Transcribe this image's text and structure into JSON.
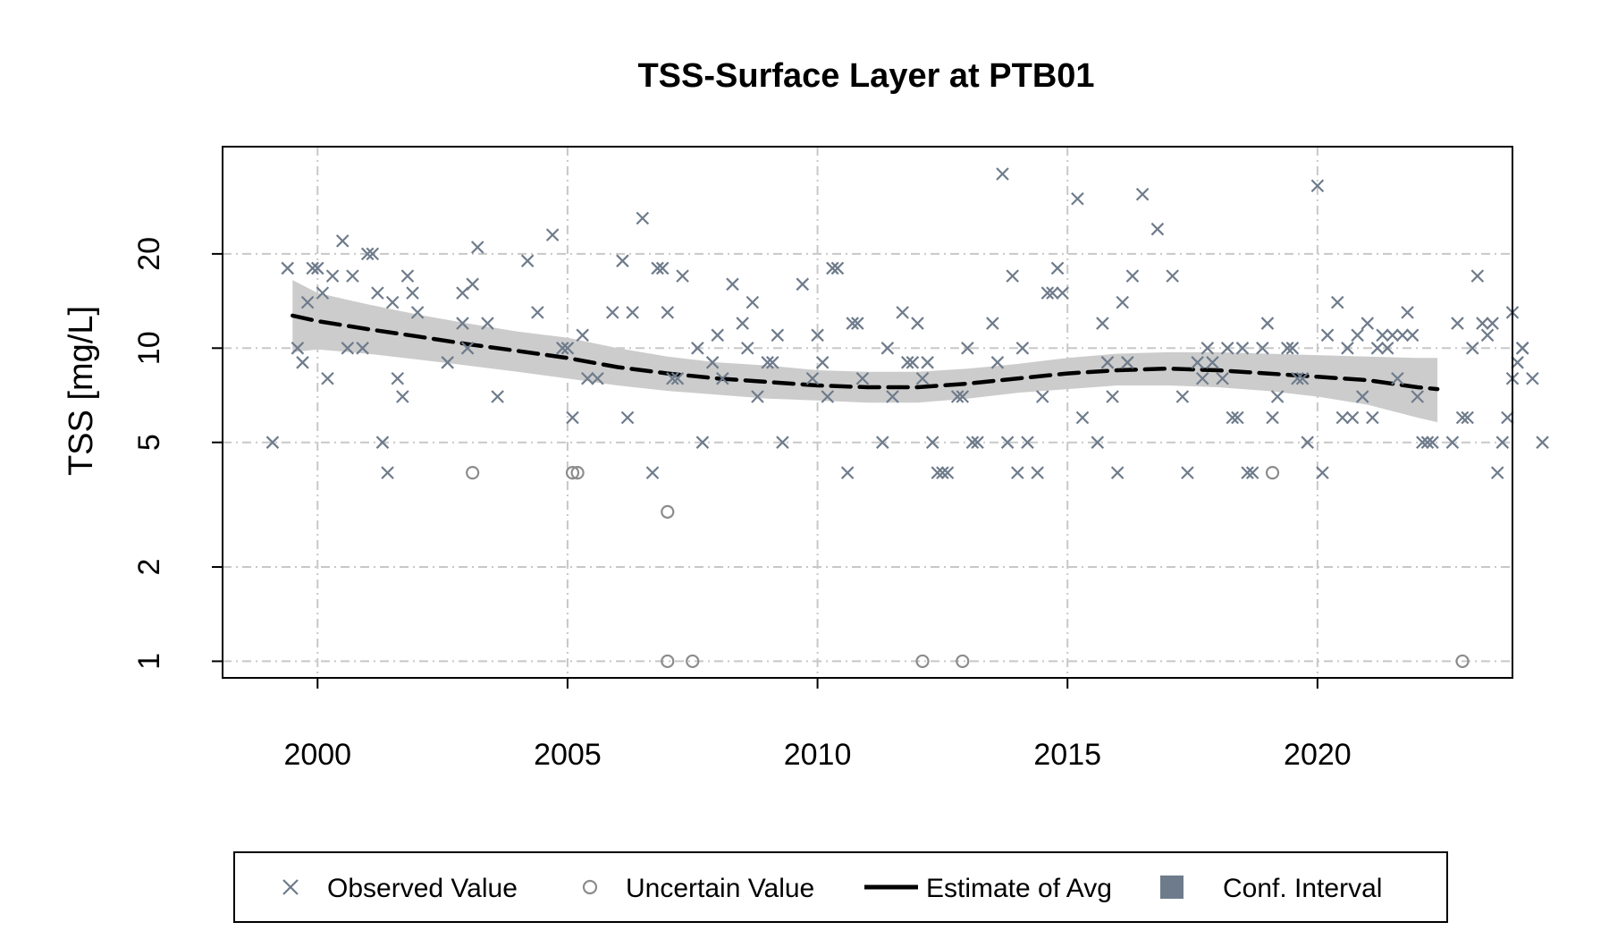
{
  "chart_data": {
    "type": "scatter",
    "title": "TSS-Surface Layer at PTB01",
    "xlabel": "",
    "ylabel": "TSS [mg/L]",
    "xlim": [
      1998.1,
      2023.9
    ],
    "ylim": [
      0.885,
      44
    ],
    "y_scale": "log",
    "x_ticks": [
      2000,
      2005,
      2010,
      2015,
      2020
    ],
    "x_tick_labels": [
      "2000",
      "2005",
      "2010",
      "2015",
      "2020"
    ],
    "y_ticks": [
      1,
      2,
      5,
      10,
      20
    ],
    "y_tick_labels": [
      "1",
      "2",
      "5",
      "10",
      "20"
    ],
    "grid": true,
    "legend_position": "bottom",
    "colors": {
      "observed": "#6e7b8b",
      "uncertain": "#8c8c8c",
      "estimate": "#000000",
      "ci_band": "#cccccc",
      "grid": "#c8c8c8",
      "legend_ci_swatch": "#6e7b8b"
    },
    "legend": [
      {
        "key": "observed",
        "label": "Observed Value",
        "symbol": "cross"
      },
      {
        "key": "uncertain",
        "label": "Uncertain Value",
        "symbol": "circle"
      },
      {
        "key": "estimate",
        "label": "Estimate of Avg",
        "symbol": "dashed-line"
      },
      {
        "key": "ci",
        "label": "Conf. Interval",
        "symbol": "filled-square"
      }
    ],
    "observed": [
      [
        1999.1,
        5
      ],
      [
        1999.4,
        18
      ],
      [
        1999.6,
        10
      ],
      [
        1999.7,
        9
      ],
      [
        1999.8,
        14
      ],
      [
        1999.9,
        18
      ],
      [
        2000.0,
        18
      ],
      [
        2000.1,
        15
      ],
      [
        2000.2,
        8
      ],
      [
        2000.3,
        17
      ],
      [
        2000.5,
        22
      ],
      [
        2000.6,
        10
      ],
      [
        2000.7,
        17
      ],
      [
        2000.9,
        10
      ],
      [
        2001.0,
        20
      ],
      [
        2001.1,
        20
      ],
      [
        2001.2,
        15
      ],
      [
        2001.3,
        5
      ],
      [
        2001.4,
        4
      ],
      [
        2001.5,
        14
      ],
      [
        2001.6,
        8
      ],
      [
        2001.7,
        7
      ],
      [
        2001.8,
        17
      ],
      [
        2001.9,
        15
      ],
      [
        2002.0,
        13
      ],
      [
        2002.6,
        9
      ],
      [
        2002.9,
        12
      ],
      [
        2002.9,
        15
      ],
      [
        2003.0,
        10
      ],
      [
        2003.1,
        16
      ],
      [
        2003.2,
        21
      ],
      [
        2003.4,
        12
      ],
      [
        2003.6,
        7
      ],
      [
        2004.2,
        19
      ],
      [
        2004.4,
        13
      ],
      [
        2004.7,
        23
      ],
      [
        2004.9,
        10
      ],
      [
        2005.0,
        10
      ],
      [
        2005.1,
        6
      ],
      [
        2005.3,
        11
      ],
      [
        2005.4,
        8
      ],
      [
        2005.6,
        8
      ],
      [
        2005.9,
        13
      ],
      [
        2006.1,
        19
      ],
      [
        2006.2,
        6
      ],
      [
        2006.3,
        13
      ],
      [
        2006.5,
        26
      ],
      [
        2006.7,
        4
      ],
      [
        2006.8,
        18
      ],
      [
        2006.9,
        18
      ],
      [
        2007.0,
        13
      ],
      [
        2007.1,
        8
      ],
      [
        2007.2,
        8
      ],
      [
        2007.3,
        17
      ],
      [
        2007.6,
        10
      ],
      [
        2007.7,
        5
      ],
      [
        2007.9,
        9
      ],
      [
        2008.0,
        11
      ],
      [
        2008.1,
        8
      ],
      [
        2008.3,
        16
      ],
      [
        2008.5,
        12
      ],
      [
        2008.6,
        10
      ],
      [
        2008.7,
        14
      ],
      [
        2008.8,
        7
      ],
      [
        2009.0,
        9
      ],
      [
        2009.1,
        9
      ],
      [
        2009.2,
        11
      ],
      [
        2009.3,
        5
      ],
      [
        2009.7,
        16
      ],
      [
        2009.9,
        8
      ],
      [
        2010.0,
        11
      ],
      [
        2010.1,
        9
      ],
      [
        2010.2,
        7
      ],
      [
        2010.3,
        18
      ],
      [
        2010.4,
        18
      ],
      [
        2010.6,
        4
      ],
      [
        2010.7,
        12
      ],
      [
        2010.8,
        12
      ],
      [
        2010.9,
        8
      ],
      [
        2011.3,
        5
      ],
      [
        2011.4,
        10
      ],
      [
        2011.5,
        7
      ],
      [
        2011.7,
        13
      ],
      [
        2011.8,
        9
      ],
      [
        2011.9,
        9
      ],
      [
        2012.0,
        12
      ],
      [
        2012.1,
        8
      ],
      [
        2012.2,
        9
      ],
      [
        2012.3,
        5
      ],
      [
        2012.4,
        4
      ],
      [
        2012.5,
        4
      ],
      [
        2012.6,
        4
      ],
      [
        2012.8,
        7
      ],
      [
        2012.9,
        7
      ],
      [
        2013.0,
        10
      ],
      [
        2013.1,
        5
      ],
      [
        2013.2,
        5
      ],
      [
        2013.5,
        12
      ],
      [
        2013.6,
        9
      ],
      [
        2013.7,
        36
      ],
      [
        2013.8,
        5
      ],
      [
        2013.9,
        17
      ],
      [
        2014.0,
        4
      ],
      [
        2014.1,
        10
      ],
      [
        2014.2,
        5
      ],
      [
        2014.4,
        4
      ],
      [
        2014.5,
        7
      ],
      [
        2014.6,
        15
      ],
      [
        2014.7,
        15
      ],
      [
        2014.8,
        18
      ],
      [
        2014.9,
        15
      ],
      [
        2015.2,
        30
      ],
      [
        2015.3,
        6
      ],
      [
        2015.6,
        5
      ],
      [
        2015.7,
        12
      ],
      [
        2015.8,
        9
      ],
      [
        2015.9,
        7
      ],
      [
        2016.0,
        4
      ],
      [
        2016.1,
        14
      ],
      [
        2016.2,
        9
      ],
      [
        2016.3,
        17
      ],
      [
        2016.5,
        31
      ],
      [
        2016.8,
        24
      ],
      [
        2017.1,
        17
      ],
      [
        2017.3,
        7
      ],
      [
        2017.4,
        4
      ],
      [
        2017.6,
        9
      ],
      [
        2017.7,
        8
      ],
      [
        2017.8,
        10
      ],
      [
        2017.9,
        9
      ],
      [
        2018.1,
        8
      ],
      [
        2018.2,
        10
      ],
      [
        2018.3,
        6
      ],
      [
        2018.4,
        6
      ],
      [
        2018.5,
        10
      ],
      [
        2018.6,
        4
      ],
      [
        2018.7,
        4
      ],
      [
        2018.9,
        10
      ],
      [
        2019.0,
        12
      ],
      [
        2019.1,
        6
      ],
      [
        2019.2,
        7
      ],
      [
        2019.4,
        10
      ],
      [
        2019.5,
        10
      ],
      [
        2019.6,
        8
      ],
      [
        2019.7,
        8
      ],
      [
        2019.8,
        5
      ],
      [
        2020.0,
        33
      ],
      [
        2020.1,
        4
      ],
      [
        2020.2,
        11
      ],
      [
        2020.4,
        14
      ],
      [
        2020.5,
        6
      ],
      [
        2020.6,
        10
      ],
      [
        2020.7,
        6
      ],
      [
        2020.8,
        11
      ],
      [
        2020.9,
        7
      ],
      [
        2021.0,
        12
      ],
      [
        2021.1,
        6
      ],
      [
        2021.2,
        10
      ],
      [
        2021.3,
        11
      ],
      [
        2021.4,
        10
      ],
      [
        2021.5,
        11
      ],
      [
        2021.6,
        8
      ],
      [
        2021.7,
        11
      ],
      [
        2021.8,
        13
      ],
      [
        2021.9,
        11
      ],
      [
        2022.0,
        7
      ],
      [
        2022.1,
        5
      ],
      [
        2022.2,
        5
      ],
      [
        2022.3,
        5
      ],
      [
        2022.7,
        5
      ],
      [
        2022.8,
        12
      ],
      [
        2022.9,
        6
      ],
      [
        2023.0,
        6
      ],
      [
        2023.1,
        10
      ],
      [
        2023.2,
        17
      ],
      [
        2023.3,
        12
      ],
      [
        2023.4,
        11
      ],
      [
        2023.5,
        12
      ],
      [
        2023.6,
        4
      ],
      [
        2023.7,
        5
      ],
      [
        2023.8,
        6
      ],
      [
        2023.9,
        13
      ],
      [
        2023.9,
        8
      ],
      [
        2024.0,
        9
      ],
      [
        2024.1,
        10
      ],
      [
        2024.1,
        10
      ],
      [
        2024.3,
        8
      ],
      [
        2024.5,
        5
      ]
    ],
    "uncertain": [
      [
        2003.1,
        4
      ],
      [
        2005.1,
        4
      ],
      [
        2005.2,
        4
      ],
      [
        2007.0,
        3
      ],
      [
        2007.0,
        1
      ],
      [
        2007.5,
        1
      ],
      [
        2012.1,
        1
      ],
      [
        2012.9,
        1
      ],
      [
        2019.1,
        4
      ],
      [
        2022.9,
        1
      ]
    ],
    "estimate": {
      "x": [
        1999.5,
        2000,
        2001,
        2002,
        2003,
        2004,
        2005,
        2006,
        2007,
        2008,
        2009,
        2010,
        2011,
        2012,
        2013,
        2014,
        2015,
        2016,
        2017,
        2018,
        2019,
        2020,
        2021,
        2022,
        2022.4
      ],
      "y": [
        12.7,
        12.2,
        11.5,
        10.9,
        10.3,
        9.8,
        9.3,
        8.7,
        8.3,
        8.0,
        7.8,
        7.6,
        7.5,
        7.5,
        7.7,
        8.0,
        8.3,
        8.5,
        8.6,
        8.5,
        8.3,
        8.1,
        7.9,
        7.5,
        7.4
      ]
    },
    "ci_band": {
      "x": [
        1999.5,
        2000,
        2001,
        2002,
        2003,
        2004,
        2005,
        2006,
        2007,
        2008,
        2009,
        2010,
        2011,
        2012,
        2013,
        2014,
        2015,
        2016,
        2017,
        2018,
        2019,
        2020,
        2021,
        2022,
        2022.4
      ],
      "lower": [
        9.7,
        9.9,
        9.6,
        9.2,
        8.8,
        8.4,
        8.0,
        7.6,
        7.3,
        7.1,
        6.9,
        6.8,
        6.7,
        6.7,
        6.9,
        7.2,
        7.4,
        7.6,
        7.6,
        7.5,
        7.3,
        7.0,
        6.6,
        6.0,
        5.8
      ],
      "upper": [
        16.5,
        15.0,
        13.8,
        12.8,
        12.0,
        11.3,
        10.8,
        10.0,
        9.4,
        9.0,
        8.8,
        8.5,
        8.4,
        8.4,
        8.6,
        8.9,
        9.3,
        9.6,
        9.7,
        9.7,
        9.6,
        9.5,
        9.4,
        9.3,
        9.3
      ]
    }
  }
}
